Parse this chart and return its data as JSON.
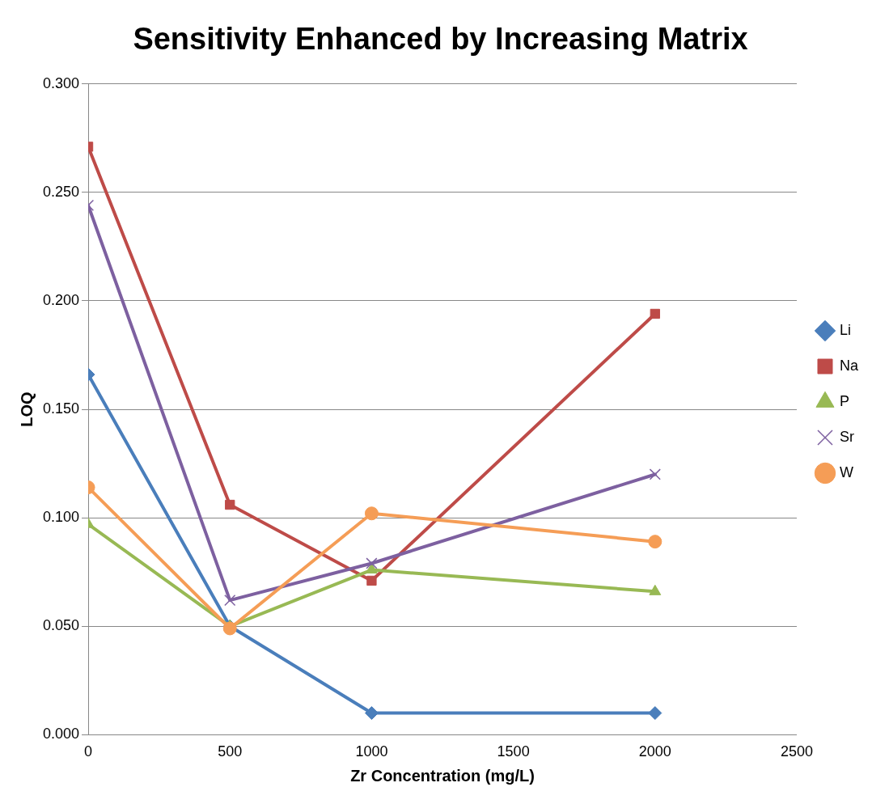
{
  "chart_data": {
    "type": "line",
    "title": "Sensitivity Enhanced by Increasing Matrix",
    "xlabel": "Zr Concentration (mg/L)",
    "ylabel": "LOQ",
    "x": [
      0,
      500,
      1000,
      2000
    ],
    "series": [
      {
        "name": "Li",
        "color": "#4a7ebb",
        "marker": "diamond",
        "values": [
          0.166,
          0.05,
          0.01,
          0.01
        ]
      },
      {
        "name": "Na",
        "color": "#be4b48",
        "marker": "square",
        "values": [
          0.271,
          0.106,
          0.071,
          0.194
        ]
      },
      {
        "name": "P",
        "color": "#98b954",
        "marker": "triangle",
        "values": [
          0.097,
          0.05,
          0.076,
          0.066
        ]
      },
      {
        "name": "Sr",
        "color": "#7d60a0",
        "marker": "cross",
        "values": [
          0.244,
          0.062,
          0.079,
          0.12
        ]
      },
      {
        "name": "W",
        "color": "#f59d56",
        "marker": "circle",
        "values": [
          0.114,
          0.049,
          0.102,
          0.089
        ]
      }
    ],
    "xlim": [
      0,
      2500
    ],
    "xticks": [
      0,
      500,
      1000,
      1500,
      2000,
      2500
    ],
    "ylim": [
      0,
      0.3
    ],
    "yticks": [
      {
        "value": 0,
        "label": "0.000"
      },
      {
        "value": 0.05,
        "label": "0.050"
      },
      {
        "value": 0.1,
        "label": "0.100"
      },
      {
        "value": 0.15,
        "label": "0.150"
      },
      {
        "value": 0.2,
        "label": "0.200"
      },
      {
        "value": 0.25,
        "label": "0.250"
      },
      {
        "value": 0.3,
        "label": "0.300"
      }
    ],
    "grid": "y",
    "legend": "right",
    "line_style": "solid"
  }
}
